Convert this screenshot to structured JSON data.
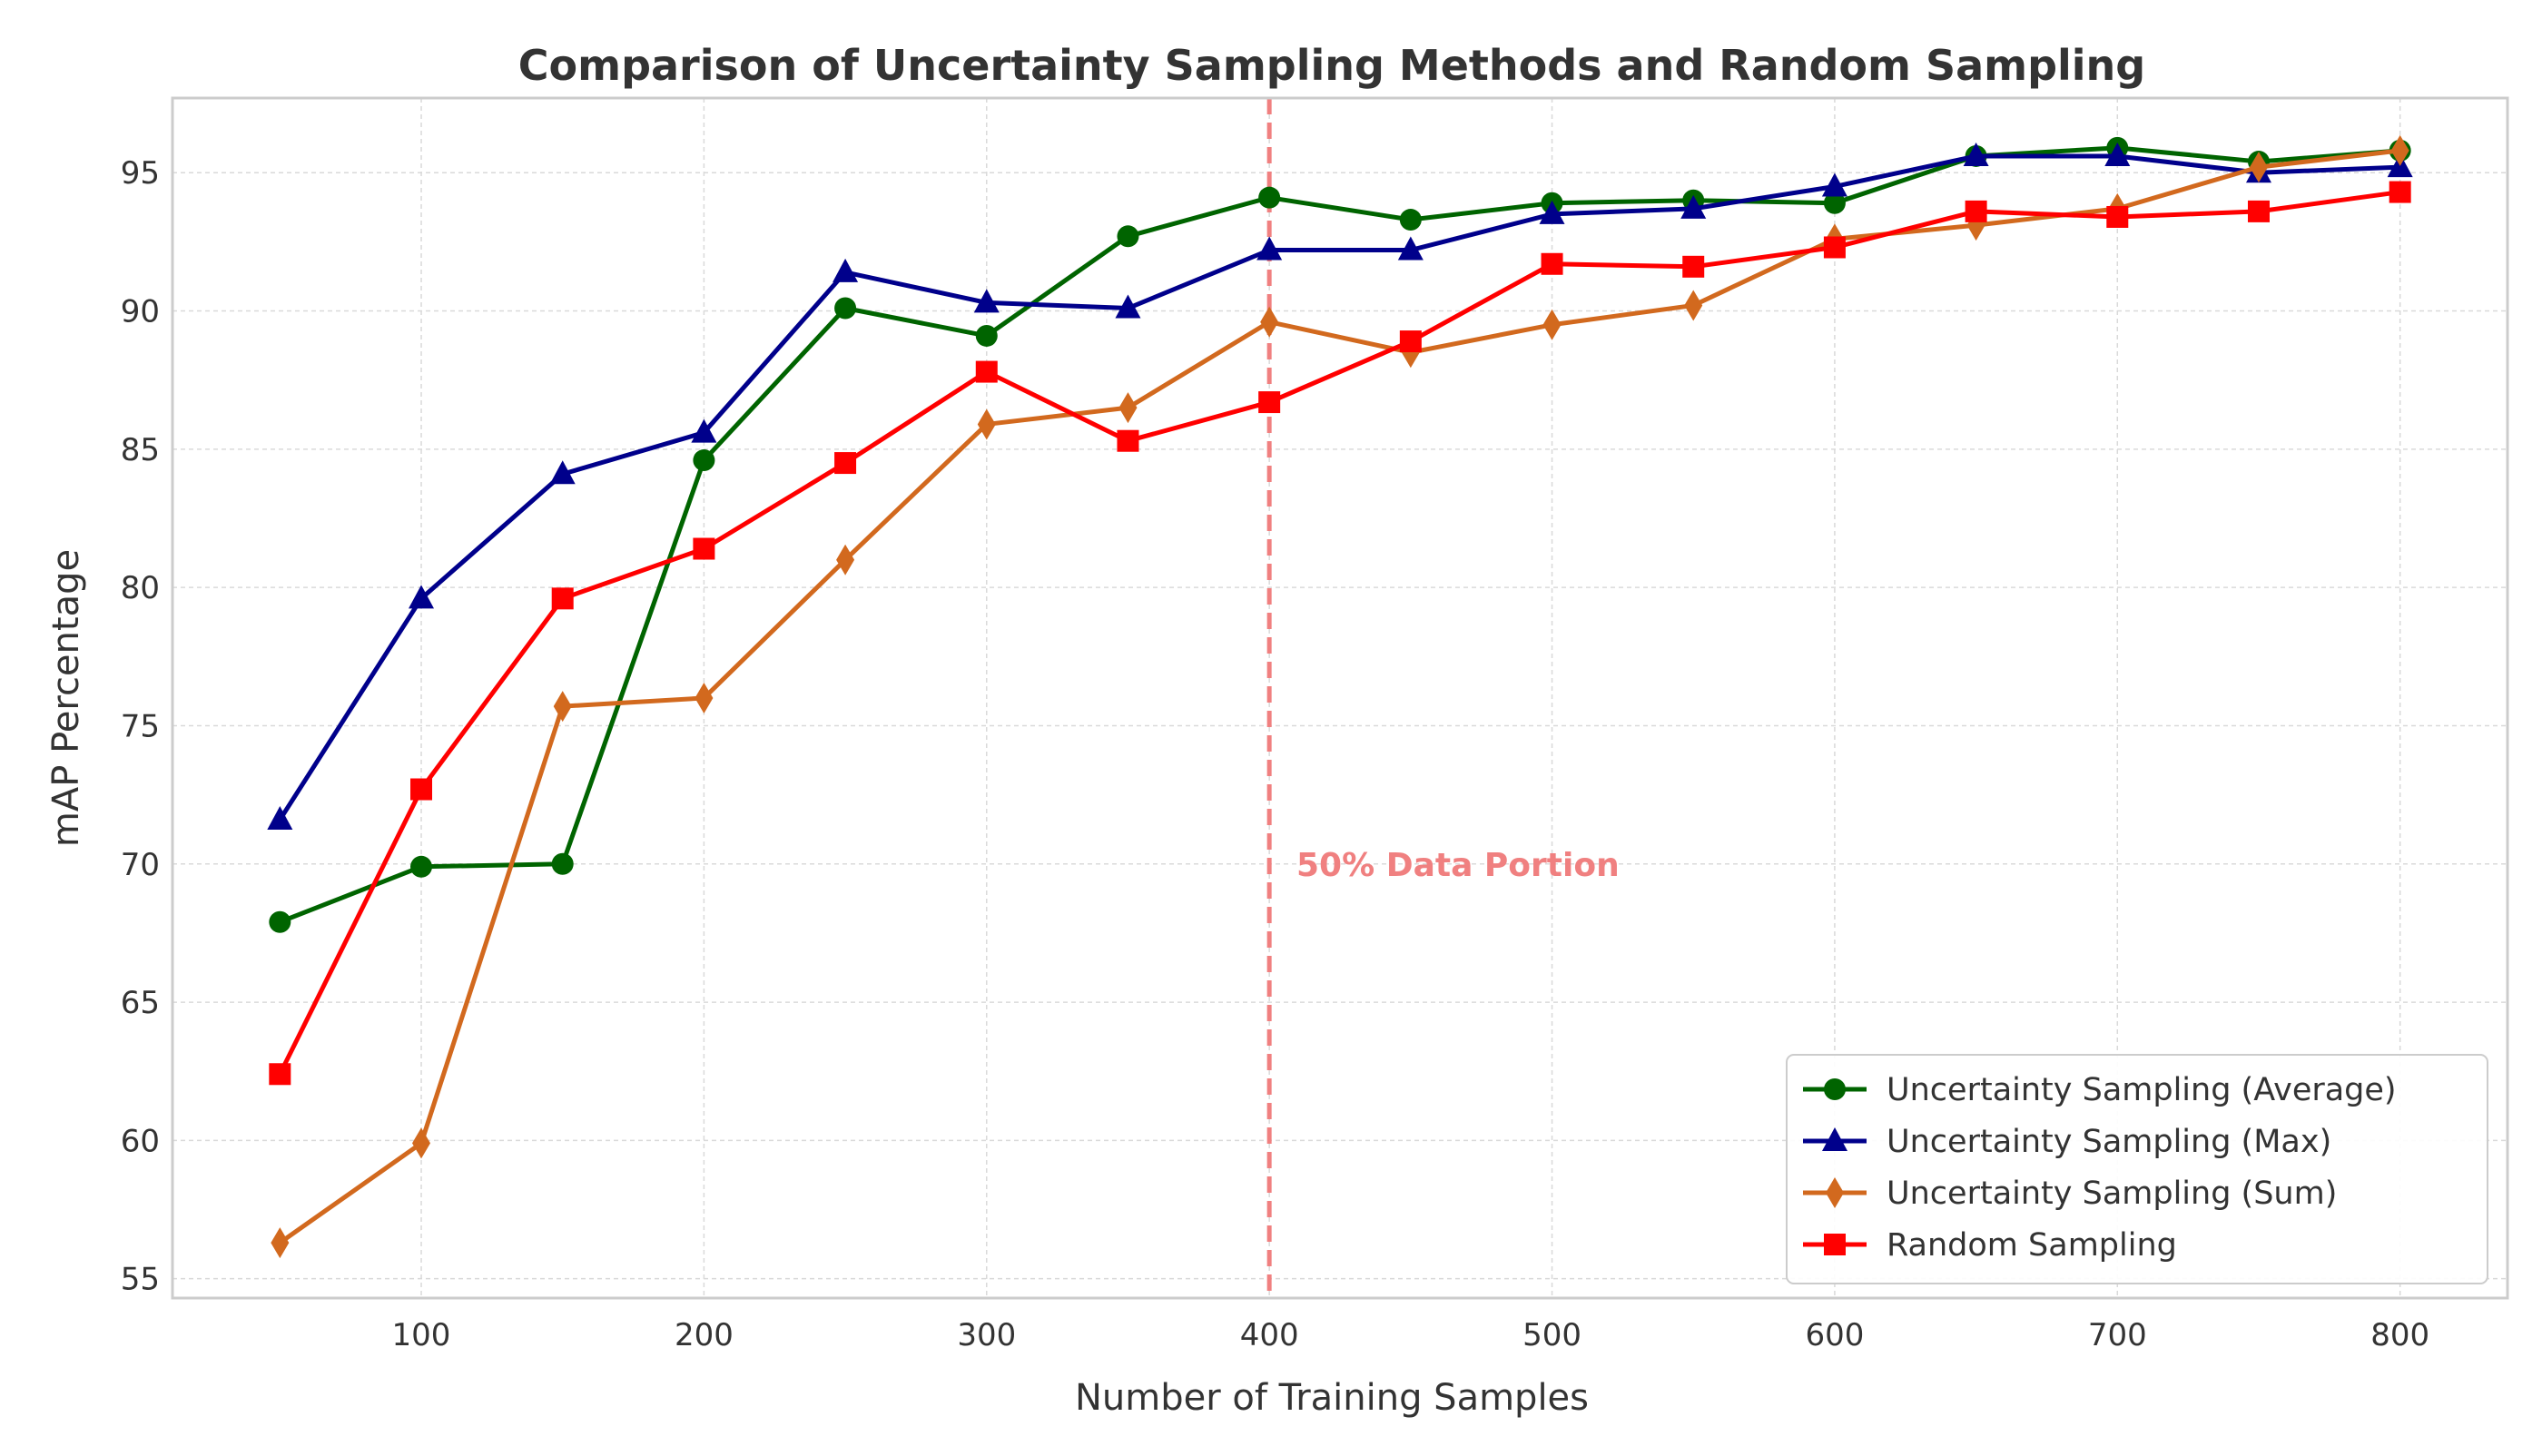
{
  "chart_data": {
    "type": "line",
    "title": "Comparison of Uncertainty Sampling Methods and Random Sampling",
    "xlabel": "Number of Training Samples",
    "ylabel": "mAP Percentage",
    "x": [
      50,
      100,
      150,
      200,
      250,
      300,
      350,
      400,
      450,
      500,
      550,
      600,
      650,
      700,
      750,
      800
    ],
    "xlim": [
      12,
      838
    ],
    "ylim": [
      54.3,
      97.7
    ],
    "xticks": [
      100,
      200,
      300,
      400,
      500,
      600,
      700,
      800
    ],
    "yticks": [
      55,
      60,
      65,
      70,
      75,
      80,
      85,
      90,
      95
    ],
    "grid": true,
    "legend_position": "lower-right",
    "series": [
      {
        "name": "Uncertainty Sampling (Average)",
        "color": "#006400",
        "marker": "circle",
        "values": [
          67.9,
          69.9,
          70.0,
          84.6,
          90.1,
          89.1,
          92.7,
          94.1,
          93.3,
          93.9,
          94.0,
          93.9,
          95.6,
          95.9,
          95.4,
          95.8
        ]
      },
      {
        "name": "Uncertainty Sampling (Max)",
        "color": "#00008B",
        "marker": "triangle",
        "values": [
          71.6,
          79.6,
          84.1,
          85.6,
          91.4,
          90.3,
          90.1,
          92.2,
          92.2,
          93.5,
          93.7,
          94.5,
          95.6,
          95.6,
          95.0,
          95.2
        ]
      },
      {
        "name": "Uncertainty Sampling (Sum)",
        "color": "#D2691E",
        "marker": "diamond",
        "values": [
          56.3,
          59.9,
          75.7,
          76.0,
          81.0,
          85.9,
          86.5,
          89.6,
          88.5,
          89.5,
          90.2,
          92.6,
          93.1,
          93.7,
          95.2,
          95.8
        ]
      },
      {
        "name": "Random Sampling",
        "color": "#FF0000",
        "marker": "square",
        "values": [
          62.4,
          72.7,
          79.6,
          81.4,
          84.5,
          87.8,
          85.3,
          86.7,
          88.9,
          91.7,
          91.6,
          92.3,
          93.6,
          93.4,
          93.6,
          94.3
        ]
      }
    ],
    "reference_line": {
      "x": 400,
      "color": "#F08080",
      "style": "dashed"
    },
    "annotation": {
      "text": "50% Data Portion",
      "x": 410,
      "y": 70,
      "color": "#F08080"
    }
  }
}
